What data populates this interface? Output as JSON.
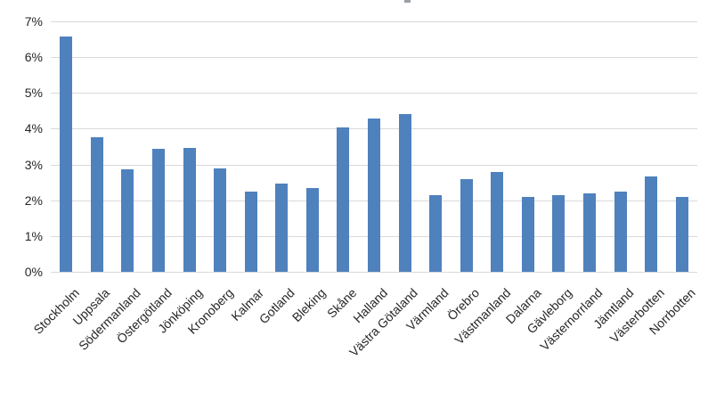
{
  "chart_data": {
    "type": "bar",
    "categories": [
      "Stockholm",
      "Uppsala",
      "Södermanland",
      "Östergötland",
      "Jönköping",
      "Kronoberg",
      "Kalmar",
      "Gotland",
      "Bleking",
      "Skåne",
      "Halland",
      "Västra Götaland",
      "Värmland",
      "Örebro",
      "Västmanland",
      "Dalarna",
      "Gävleborg",
      "Västernorrland",
      "Jämtland",
      "Västerbotten",
      "Norrbotten"
    ],
    "values": [
      6.58,
      3.76,
      2.87,
      3.45,
      3.47,
      2.9,
      2.24,
      2.47,
      2.35,
      4.03,
      4.29,
      4.4,
      2.13,
      2.59,
      2.8,
      2.09,
      2.13,
      2.18,
      2.25,
      2.66,
      2.09
    ],
    "y_tick_labels": [
      "0%",
      "1%",
      "2%",
      "3%",
      "4%",
      "5%",
      "6%",
      "7%"
    ],
    "ylim": [
      0,
      7
    ],
    "grid": true,
    "legend": false,
    "bar_color": "#4F81BD",
    "gridline_color": "#D9D9D9",
    "axis_text_color": "#262626"
  }
}
